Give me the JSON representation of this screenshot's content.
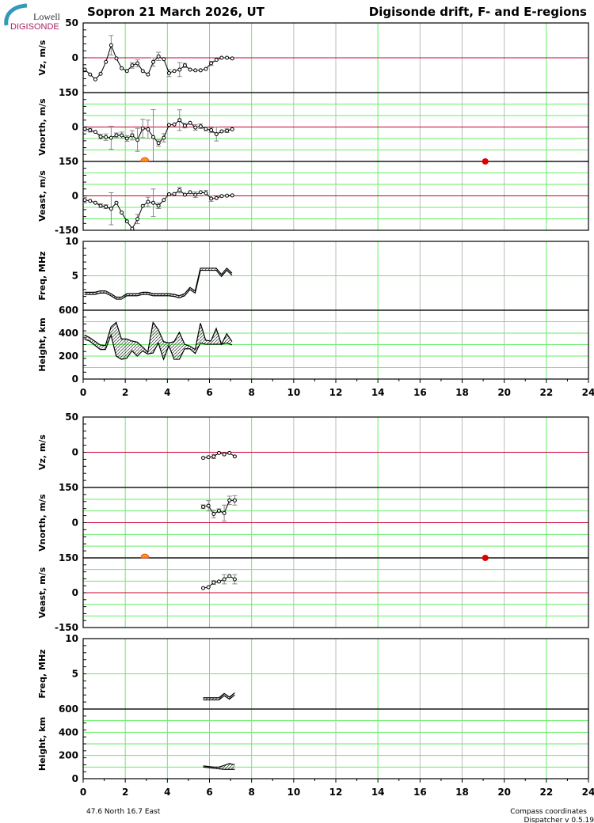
{
  "header": {
    "logo_top": "Lowell",
    "logo_bottom": "DIGISONDE",
    "title_left": "Sopron  21 March 2026, UT",
    "title_right": "Digisonde drift, F- and E-regions"
  },
  "footer": {
    "coords": "47.6 North   16.7 East",
    "compass": "Compass coordinates",
    "version": "Dispatcher v 0.5.19"
  },
  "colors": {
    "grid_major": "#66ee66",
    "grid_minor": "#bbbbbb",
    "zero_line": "#cc0033",
    "sun": "#ff9900",
    "marker": "#dd0000"
  },
  "chart_data": [
    {
      "type": "line",
      "block": "F-region",
      "xlabel_ticks": [
        "0",
        "2",
        "4",
        "6",
        "8",
        "10",
        "12",
        "14",
        "16",
        "18",
        "20",
        "22",
        "24"
      ],
      "xlim": [
        0,
        24
      ],
      "markers": {
        "sunrise_hour": 2.93,
        "sunset_hour": 19.1
      },
      "panels": [
        {
          "id": "vz",
          "ylabel": "Vz, m/s",
          "ylim": [
            -50,
            50
          ],
          "yticks": [
            "50",
            "0"
          ],
          "x": [
            0.08,
            0.33,
            0.58,
            0.83,
            1.08,
            1.33,
            1.58,
            1.83,
            2.08,
            2.33,
            2.58,
            2.83,
            3.08,
            3.33,
            3.58,
            3.83,
            4.08,
            4.33,
            4.58,
            4.83,
            5.08,
            5.33,
            5.58,
            5.83,
            6.08,
            6.33,
            6.58,
            6.83,
            7.08
          ],
          "y": [
            -17,
            -24,
            -31,
            -23,
            -6,
            18,
            -1,
            -15,
            -19,
            -11,
            -8,
            -19,
            -24,
            -6,
            2,
            -2,
            -22,
            -19,
            -17,
            -11,
            -17,
            -18,
            -18,
            -16,
            -8,
            -3,
            0,
            0,
            -1
          ],
          "err": [
            0,
            0,
            0,
            0,
            0,
            14,
            0,
            0,
            0,
            4,
            5,
            0,
            0,
            6,
            6,
            0,
            5,
            0,
            10,
            3,
            0,
            0,
            0,
            0,
            3,
            0,
            0,
            0,
            0
          ]
        },
        {
          "id": "vnorth",
          "ylabel": "Vnorth, m/s",
          "ylim": [
            -150,
            150
          ],
          "yticks": [
            "150",
            "0"
          ],
          "x": [
            0.08,
            0.33,
            0.58,
            0.83,
            1.08,
            1.33,
            1.58,
            1.83,
            2.08,
            2.33,
            2.58,
            2.83,
            3.08,
            3.33,
            3.58,
            3.83,
            4.08,
            4.33,
            4.58,
            4.83,
            5.08,
            5.33,
            5.58,
            5.83,
            6.08,
            6.33,
            6.58,
            6.83,
            7.08
          ],
          "y": [
            -8,
            -14,
            -21,
            -42,
            -44,
            -47,
            -36,
            -36,
            -50,
            -36,
            -56,
            -6,
            -10,
            -44,
            -70,
            -47,
            9,
            11,
            30,
            6,
            18,
            -2,
            3,
            -8,
            -14,
            -31,
            -19,
            -16,
            -10
          ],
          "err": [
            10,
            8,
            0,
            10,
            14,
            50,
            10,
            14,
            12,
            20,
            50,
            40,
            40,
            120,
            14,
            18,
            0,
            0,
            45,
            10,
            0,
            12,
            10,
            8,
            10,
            30,
            0,
            8,
            0
          ]
        },
        {
          "id": "veast",
          "ylabel": "Veast, m/s",
          "ylim": [
            -150,
            150
          ],
          "yticks": [
            "150",
            "0",
            "-150"
          ],
          "x": [
            0.08,
            0.33,
            0.58,
            0.83,
            1.08,
            1.33,
            1.58,
            1.83,
            2.08,
            2.33,
            2.58,
            2.83,
            3.08,
            3.33,
            3.58,
            3.83,
            4.08,
            4.33,
            4.58,
            4.83,
            5.08,
            5.33,
            5.58,
            5.83,
            6.08,
            6.33,
            6.58,
            6.83,
            7.08
          ],
          "y": [
            -18,
            -22,
            -30,
            -43,
            -47,
            -56,
            -30,
            -73,
            -111,
            -143,
            -101,
            -44,
            -26,
            -30,
            -43,
            -18,
            7,
            8,
            25,
            5,
            16,
            5,
            16,
            12,
            -12,
            -10,
            -1,
            1,
            2
          ],
          "err": [
            12,
            0,
            0,
            8,
            8,
            70,
            0,
            0,
            0,
            0,
            20,
            0,
            20,
            60,
            12,
            0,
            0,
            0,
            12,
            0,
            0,
            12,
            0,
            12,
            12,
            0,
            0,
            0,
            0
          ]
        },
        {
          "id": "freq",
          "ylabel": "Freq, MHz",
          "ylim": [
            0,
            10
          ],
          "yticks": [
            "10",
            "5"
          ],
          "band": true,
          "x": [
            0.06,
            0.31,
            0.56,
            0.81,
            1.06,
            1.32,
            1.57,
            1.82,
            2.07,
            2.32,
            2.57,
            2.82,
            3.07,
            3.32,
            3.57,
            3.82,
            4.07,
            4.32,
            4.57,
            4.82,
            5.07,
            5.32,
            5.57,
            5.82,
            6.07,
            6.32,
            6.57,
            6.82,
            7.07
          ],
          "lo": [
            2.3,
            2.3,
            2.3,
            2.5,
            2.5,
            2.1,
            1.6,
            1.6,
            2.1,
            2.1,
            2.1,
            2.3,
            2.3,
            2.1,
            2.1,
            2.1,
            2.1,
            2.0,
            1.8,
            2.1,
            3.0,
            2.5,
            5.8,
            5.8,
            5.8,
            5.8,
            4.9,
            5.8,
            5.1
          ],
          "hi": [
            2.6,
            2.6,
            2.6,
            2.8,
            2.8,
            2.4,
            1.9,
            1.9,
            2.4,
            2.4,
            2.4,
            2.6,
            2.6,
            2.4,
            2.4,
            2.4,
            2.4,
            2.3,
            2.1,
            2.4,
            3.3,
            2.8,
            6.1,
            6.1,
            6.1,
            6.1,
            5.2,
            6.1,
            5.4
          ]
        },
        {
          "id": "height",
          "ylabel": "Height, km",
          "ylim": [
            0,
            600
          ],
          "yticks": [
            "600",
            "400",
            "200",
            "0"
          ],
          "band": true,
          "x": [
            0.06,
            0.31,
            0.81,
            1.06,
            1.32,
            1.57,
            1.82,
            2.07,
            2.32,
            2.57,
            2.82,
            3.07,
            3.32,
            3.57,
            3.82,
            4.07,
            4.32,
            4.57,
            4.82,
            5.07,
            5.32,
            5.57,
            5.82,
            6.07,
            6.32,
            6.57,
            6.82,
            7.07
          ],
          "lo": [
            349,
            331,
            258,
            258,
            384,
            200,
            172,
            182,
            246,
            200,
            246,
            218,
            228,
            315,
            172,
            292,
            172,
            172,
            264,
            264,
            223,
            315,
            303,
            303,
            303,
            303,
            315,
            297
          ],
          "hi": [
            384,
            361,
            297,
            292,
            453,
            494,
            349,
            349,
            331,
            322,
            280,
            234,
            494,
            430,
            326,
            315,
            326,
            407,
            303,
            287,
            258,
            487,
            338,
            331,
            441,
            303,
            395,
            326
          ]
        }
      ]
    },
    {
      "type": "line",
      "block": "E-region",
      "xlabel_ticks": [
        "0",
        "2",
        "4",
        "6",
        "8",
        "10",
        "12",
        "14",
        "16",
        "18",
        "20",
        "22",
        "24"
      ],
      "xlim": [
        0,
        24
      ],
      "markers": {
        "sunrise_hour": 2.93,
        "sunset_hour": 19.1
      },
      "panels": [
        {
          "id": "vz",
          "ylabel": "Vz, m/s",
          "ylim": [
            -50,
            50
          ],
          "yticks": [
            "50",
            "0"
          ],
          "x": [
            5.7,
            5.95,
            6.2,
            6.45,
            6.7,
            6.95,
            7.2
          ],
          "y": [
            -8,
            -7,
            -6,
            -1,
            -3,
            -1,
            -6
          ],
          "err": [
            0,
            0,
            3,
            0,
            0,
            0,
            0
          ]
        },
        {
          "id": "vnorth",
          "ylabel": "Vnorth, m/s",
          "ylim": [
            -150,
            150
          ],
          "yticks": [
            "150",
            "0"
          ],
          "x": [
            5.7,
            5.95,
            6.2,
            6.45,
            6.7,
            6.95,
            7.2
          ],
          "y": [
            68,
            72,
            37,
            51,
            41,
            95,
            95
          ],
          "err": [
            8,
            22,
            16,
            8,
            34,
            18,
            20
          ]
        },
        {
          "id": "veast",
          "ylabel": "Veast, m/s",
          "ylim": [
            -150,
            150
          ],
          "yticks": [
            "150",
            "0",
            "-150"
          ],
          "x": [
            5.7,
            5.95,
            6.2,
            6.45,
            6.7,
            6.95,
            7.2
          ],
          "y": [
            20,
            24,
            44,
            48,
            58,
            72,
            58
          ],
          "err": [
            0,
            0,
            8,
            0,
            20,
            0,
            20
          ]
        },
        {
          "id": "freq",
          "ylabel": "Freq, MHz",
          "ylim": [
            0,
            10
          ],
          "yticks": [
            "10",
            "5"
          ],
          "band": true,
          "x": [
            5.7,
            5.95,
            6.2,
            6.45,
            6.7,
            6.95,
            7.2
          ],
          "lo": [
            1.3,
            1.3,
            1.3,
            1.3,
            1.9,
            1.4,
            2.0
          ],
          "hi": [
            1.6,
            1.6,
            1.6,
            1.6,
            2.2,
            1.7,
            2.3
          ]
        },
        {
          "id": "height",
          "ylabel": "Height, km",
          "ylim": [
            0,
            600
          ],
          "yticks": [
            "600",
            "400",
            "200",
            "0"
          ],
          "band": true,
          "x": [
            5.7,
            5.95,
            6.2,
            6.45,
            6.7,
            6.95,
            7.2
          ],
          "lo": [
            100,
            95,
            90,
            85,
            80,
            80,
            80
          ],
          "hi": [
            110,
            105,
            100,
            100,
            115,
            130,
            120
          ]
        }
      ]
    }
  ]
}
